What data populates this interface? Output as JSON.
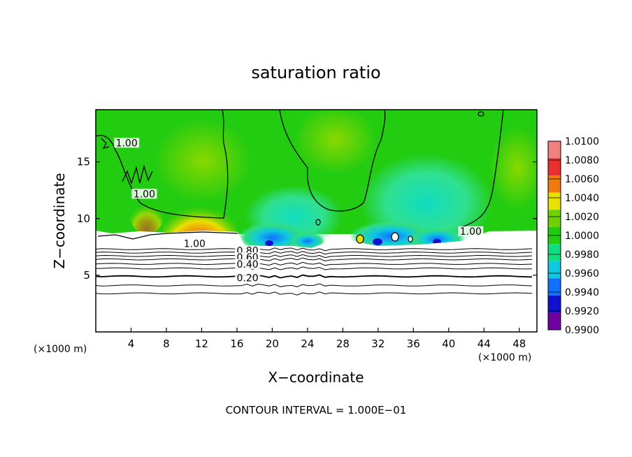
{
  "chart_data": {
    "type": "heatmap",
    "title": "saturation ratio",
    "xlabel": "X−coordinate",
    "ylabel": "Z−coordinate",
    "x_unit_left": "(×1000 m)",
    "x_unit_right": "(×1000 m)",
    "footer": "CONTOUR INTERVAL = 1.000E−01",
    "xlim": [
      0,
      50
    ],
    "ylim": [
      0,
      19.6
    ],
    "x_ticks": [
      4,
      8,
      12,
      16,
      20,
      24,
      28,
      32,
      36,
      40,
      44,
      48
    ],
    "y_ticks": [
      5,
      10,
      15
    ],
    "colorbar": {
      "levels": [
        "1.0100",
        "1.0080",
        "1.0060",
        "1.0040",
        "1.0020",
        "1.0000",
        "0.9980",
        "0.9960",
        "0.9940",
        "0.9920",
        "0.9900"
      ],
      "bands": [
        "#f08080",
        "#e83030",
        "#f07a10",
        "#e8e000",
        "#70d000",
        "#22cc11",
        "#10dd80",
        "#10c8e0",
        "#1070ff",
        "#1010d0",
        "#7000a0"
      ]
    },
    "contour_labels": [
      {
        "text": "1.00",
        "x": 11.2,
        "y": 7.6
      },
      {
        "text": "0.80",
        "x": 17.2,
        "y": 7.0
      },
      {
        "text": "0.60",
        "x": 17.2,
        "y": 6.4
      },
      {
        "text": "0.40",
        "x": 17.2,
        "y": 5.8
      },
      {
        "text": "0.20",
        "x": 17.2,
        "y": 4.6
      },
      {
        "text": "1.00",
        "x": 3.5,
        "y": 16.5
      },
      {
        "text": "1.00",
        "x": 5.5,
        "y": 12.0
      },
      {
        "text": "1.00",
        "x": 42.5,
        "y": 8.7
      }
    ],
    "layer_lines_z": [
      3.4,
      4.1,
      4.9,
      5.6,
      6.0,
      6.4,
      6.7,
      7.0,
      7.3
    ]
  }
}
